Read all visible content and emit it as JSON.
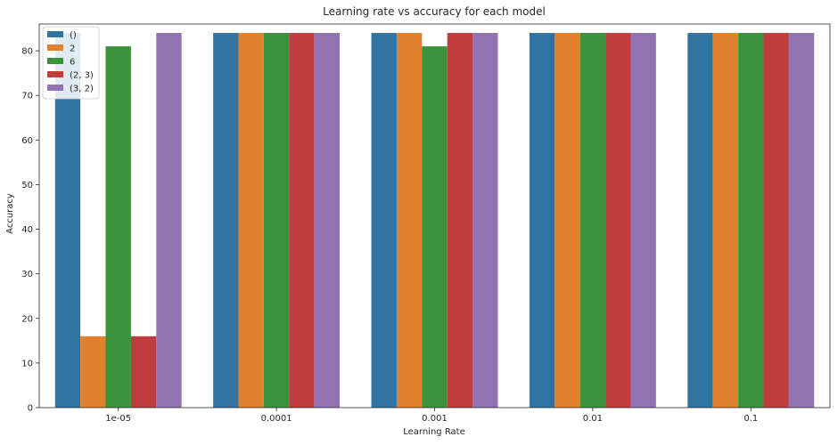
{
  "chart_data": {
    "type": "bar",
    "title": "Learning rate vs accuracy for each model",
    "xlabel": "Learning Rate",
    "ylabel": "Accuracy",
    "categories": [
      "1e-05",
      "0.0001",
      "0.001",
      "0.01",
      "0.1"
    ],
    "ylim": [
      0,
      86
    ],
    "yticks": [
      0,
      10,
      20,
      30,
      40,
      50,
      60,
      70,
      80
    ],
    "grid": false,
    "legend_position": "top-left",
    "series": [
      {
        "name": "()",
        "color": "#3274a1",
        "values": [
          84,
          84,
          84,
          84,
          84
        ]
      },
      {
        "name": "2",
        "color": "#e1812c",
        "values": [
          16,
          84,
          84,
          84,
          84
        ]
      },
      {
        "name": "6",
        "color": "#3a923a",
        "values": [
          81,
          84,
          81,
          84,
          84
        ]
      },
      {
        "name": "(2, 3)",
        "color": "#c03d3e",
        "values": [
          16,
          84,
          84,
          84,
          84
        ]
      },
      {
        "name": "(3, 2)",
        "color": "#9372b2",
        "values": [
          84,
          84,
          84,
          84,
          84
        ]
      }
    ]
  }
}
